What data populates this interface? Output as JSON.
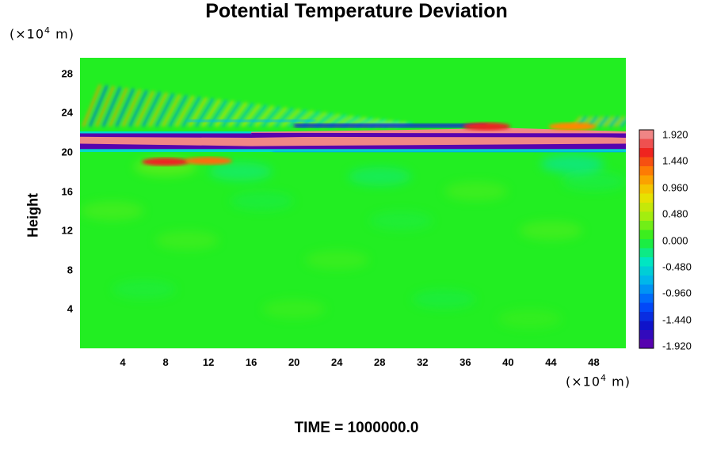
{
  "chart_data": {
    "type": "heatmap",
    "title": "Potential Temperature Deviation",
    "ylabel": "Height",
    "y_unit_prefix": "(×10",
    "y_unit_exp": "4",
    "y_unit_suffix": " m)",
    "x_unit_prefix": "(×10",
    "x_unit_exp": "4",
    "x_unit_suffix": " m)",
    "x_ticks": [
      "4",
      "8",
      "12",
      "16",
      "20",
      "24",
      "28",
      "32",
      "36",
      "40",
      "44",
      "48"
    ],
    "y_ticks": [
      "4",
      "8",
      "12",
      "16",
      "20",
      "24",
      "28"
    ],
    "xlim": [
      0,
      51
    ],
    "ylim": [
      0,
      29.6
    ],
    "colorbar_ticks": [
      "1.920",
      "1.440",
      "0.960",
      "0.480",
      "0.000",
      "-0.480",
      "-0.960",
      "-1.440",
      "-1.920"
    ],
    "color_range": [
      -2.0,
      2.0
    ],
    "dominant_value": 0.0,
    "features": [
      {
        "kind": "band",
        "y": 21.2,
        "value": 1.92
      },
      {
        "kind": "band",
        "y": 20.6,
        "value": -1.92
      },
      {
        "kind": "band",
        "y": 21.8,
        "value": -1.92
      },
      {
        "kind": "waves",
        "y_range": [
          22,
          27
        ],
        "x_range": [
          0,
          30
        ]
      }
    ],
    "time_label": "TIME = 1000000.0"
  }
}
